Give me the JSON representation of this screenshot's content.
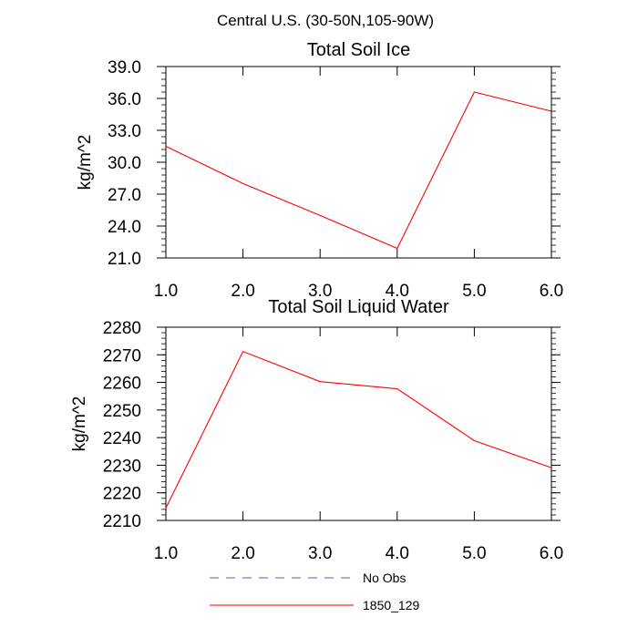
{
  "figure": {
    "title": "Central U.S. (30-50N,105-90W)"
  },
  "chart_data": [
    {
      "type": "line",
      "title": "Total Soil Ice",
      "xlabel": "",
      "ylabel": "kg/m^2",
      "x": [
        1.0,
        2.0,
        3.0,
        4.0,
        5.0,
        6.0
      ],
      "series": [
        {
          "name": "1850_129",
          "color": "#ff0000",
          "values": [
            31.5,
            28.0,
            25.0,
            21.9,
            36.6,
            34.8
          ]
        }
      ],
      "xlim": [
        1.0,
        6.0
      ],
      "ylim": [
        21.0,
        39.0
      ],
      "xticks": [
        1.0,
        2.0,
        3.0,
        4.0,
        5.0,
        6.0
      ],
      "xtick_labels": [
        "1.0",
        "2.0",
        "3.0",
        "4.0",
        "5.0",
        "6.0"
      ],
      "yticks": [
        21.0,
        24.0,
        27.0,
        30.0,
        33.0,
        36.0,
        39.0
      ],
      "ytick_labels": [
        "21.0",
        "24.0",
        "27.0",
        "30.0",
        "33.0",
        "36.0",
        "39.0"
      ],
      "y_minor_step": 0.6
    },
    {
      "type": "line",
      "title": "Total Soil Liquid Water",
      "xlabel": "",
      "ylabel": "kg/m^2",
      "x": [
        1.0,
        2.0,
        3.0,
        4.0,
        5.0,
        6.0
      ],
      "series": [
        {
          "name": "1850_129",
          "color": "#ff0000",
          "values": [
            2214.5,
            2271.2,
            2260.3,
            2257.7,
            2238.9,
            2229.1
          ]
        }
      ],
      "xlim": [
        1.0,
        6.0
      ],
      "ylim": [
        2210,
        2280
      ],
      "xticks": [
        1.0,
        2.0,
        3.0,
        4.0,
        5.0,
        6.0
      ],
      "xtick_labels": [
        "1.0",
        "2.0",
        "3.0",
        "4.0",
        "5.0",
        "6.0"
      ],
      "yticks": [
        2210,
        2220,
        2230,
        2240,
        2250,
        2260,
        2270,
        2280
      ],
      "ytick_labels": [
        "2210",
        "2220",
        "2230",
        "2240",
        "2250",
        "2260",
        "2270",
        "2280"
      ],
      "y_minor_step": 2
    }
  ],
  "legend": {
    "items": [
      {
        "label": "No Obs",
        "color": "#5b5bb0",
        "style": "dashed"
      },
      {
        "label": "1850_129",
        "color": "#ff0000",
        "style": "solid"
      }
    ]
  }
}
